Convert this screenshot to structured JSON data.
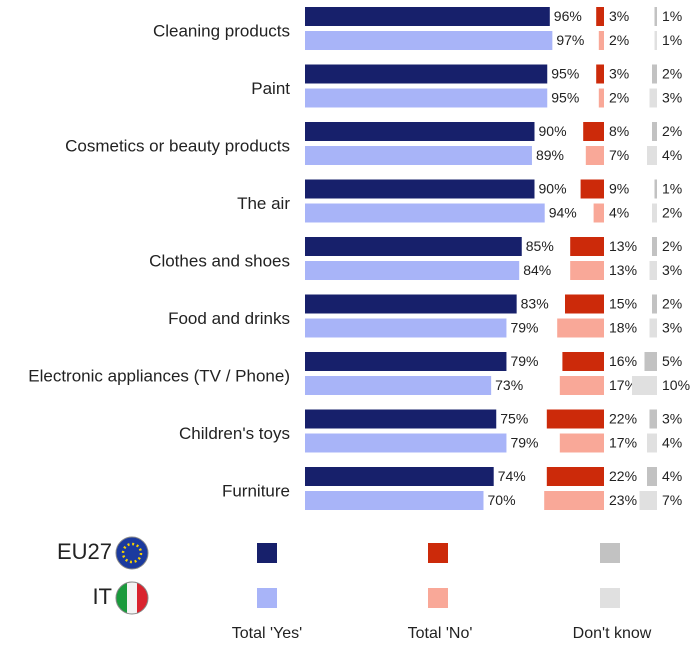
{
  "chart_data": {
    "type": "bar",
    "categories": [
      "Cleaning products",
      "Paint",
      "Cosmetics or beauty products",
      "The air",
      "Clothes and shoes",
      "Food and drinks",
      "Electronic appliances (TV / Phone)",
      "Children's toys",
      "Furniture"
    ],
    "panels": [
      "Total 'Yes'",
      "Total 'No'",
      "Don't know"
    ],
    "series": [
      {
        "name": "EU27",
        "panels": [
          {
            "color": "#17206b",
            "values": [
              96,
              95,
              90,
              90,
              85,
              83,
              79,
              75,
              74
            ],
            "value_labels": [
              "96%",
              "95%",
              "90%",
              "90%",
              "85%",
              "83%",
              "79%",
              "75%",
              "74%"
            ]
          },
          {
            "color": "#cc2a0a",
            "values": [
              3,
              3,
              8,
              9,
              13,
              15,
              16,
              22,
              22
            ],
            "value_labels": [
              "3%",
              "3%",
              "8%",
              "9%",
              "13%",
              "15%",
              "16%",
              "22%",
              "22%"
            ]
          },
          {
            "color": "#c2c2c2",
            "values": [
              1,
              2,
              2,
              1,
              2,
              2,
              5,
              3,
              4
            ],
            "value_labels": [
              "1%",
              "2%",
              "2%",
              "1%",
              "2%",
              "2%",
              "5%",
              "3%",
              "4%"
            ]
          }
        ]
      },
      {
        "name": "IT",
        "panels": [
          {
            "color": "#a8b4f8",
            "values": [
              97,
              95,
              89,
              94,
              84,
              79,
              73,
              79,
              70
            ],
            "value_labels": [
              "97%",
              "95%",
              "89%",
              "94%",
              "84%",
              "79%",
              "73%",
              "79%",
              "70%"
            ]
          },
          {
            "color": "#f9a898",
            "values": [
              2,
              2,
              7,
              4,
              13,
              18,
              17,
              17,
              23
            ],
            "value_labels": [
              "2%",
              "2%",
              "7%",
              "4%",
              "13%",
              "18%",
              "17%",
              "17%",
              "23%"
            ]
          },
          {
            "color": "#e0e0e0",
            "values": [
              1,
              3,
              4,
              2,
              3,
              3,
              10,
              4,
              7
            ],
            "value_labels": [
              "1%",
              "3%",
              "4%",
              "2%",
              "3%",
              "3%",
              "10%",
              "4%",
              "7%"
            ]
          }
        ]
      }
    ]
  }
}
